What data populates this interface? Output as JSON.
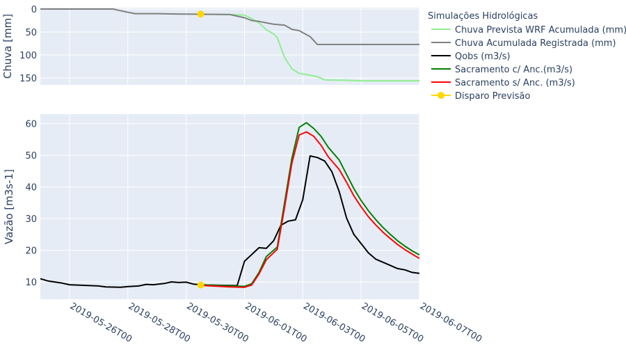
{
  "chart_data": [
    {
      "type": "line",
      "panel": "top",
      "ylabel": "Chuva [mm]",
      "y_reversed": true,
      "ylim": [
        165,
        -3
      ],
      "yticks": [
        0,
        50,
        100,
        150
      ],
      "x_range": [
        "2019-05-25T00",
        "2019-06-07T00"
      ],
      "series": [
        {
          "name": "Chuva Prevista WRF Acumulada (mm)",
          "color": "#90ee90",
          "points": [
            [
              "2019-05-30T12",
              11
            ],
            [
              "2019-05-31T12",
              12
            ],
            [
              "2019-06-01T00",
              13
            ],
            [
              "2019-06-01T06",
              21
            ],
            [
              "2019-06-01T12",
              30
            ],
            [
              "2019-06-01T18",
              45
            ],
            [
              "2019-06-02T00",
              54
            ],
            [
              "2019-06-02T03",
              62
            ],
            [
              "2019-06-02T09",
              105
            ],
            [
              "2019-06-02T15",
              130
            ],
            [
              "2019-06-02T21",
              140
            ],
            [
              "2019-06-03T06",
              144
            ],
            [
              "2019-06-03T12",
              147
            ],
            [
              "2019-06-03T18",
              154
            ],
            [
              "2019-06-04T12",
              155
            ],
            [
              "2019-06-05T00",
              156
            ],
            [
              "2019-06-07T00",
              156
            ]
          ]
        },
        {
          "name": "Chuva Acumulada Registrada (mm)",
          "color": "#808080",
          "points": [
            [
              "2019-05-25T00",
              0
            ],
            [
              "2019-05-27T12",
              0
            ],
            [
              "2019-05-28T00",
              7
            ],
            [
              "2019-05-28T06",
              10
            ],
            [
              "2019-05-29T00",
              10
            ],
            [
              "2019-05-30T00",
              11
            ],
            [
              "2019-05-31T12",
              12
            ],
            [
              "2019-06-01T00",
              19
            ],
            [
              "2019-06-01T06",
              25
            ],
            [
              "2019-06-01T12",
              27
            ],
            [
              "2019-06-02T00",
              33
            ],
            [
              "2019-06-02T09",
              35
            ],
            [
              "2019-06-02T15",
              44
            ],
            [
              "2019-06-02T21",
              47
            ],
            [
              "2019-06-03T06",
              60
            ],
            [
              "2019-06-03T12",
              77
            ],
            [
              "2019-06-04T12",
              77
            ],
            [
              "2019-06-07T00",
              77
            ]
          ]
        }
      ],
      "marker": {
        "name": "Disparo Previsão",
        "color": "#ffd700",
        "x": "2019-05-30T12",
        "y": 11
      }
    },
    {
      "type": "line",
      "panel": "bottom",
      "ylabel": "Vazão [m3s-1]",
      "ylim": [
        4.5,
        63
      ],
      "yticks": [
        10,
        20,
        30,
        40,
        50,
        60
      ],
      "xticks": [
        "2019-05-26T00",
        "2019-05-28T00",
        "2019-05-30T00",
        "2019-06-01T00",
        "2019-06-03T00",
        "2019-06-05T00",
        "2019-06-07T00"
      ],
      "x_range": [
        "2019-05-25T00",
        "2019-06-07T00"
      ],
      "series": [
        {
          "name": "Qobs (m3/s)",
          "color": "#000000",
          "points": [
            [
              "2019-05-25T00",
              11.0
            ],
            [
              "2019-05-25T06",
              10.3
            ],
            [
              "2019-05-25T18",
              9.6
            ],
            [
              "2019-05-26T00",
              9.1
            ],
            [
              "2019-05-26T12",
              8.9
            ],
            [
              "2019-05-27T00",
              8.7
            ],
            [
              "2019-05-27T06",
              8.4
            ],
            [
              "2019-05-27T18",
              8.3
            ],
            [
              "2019-05-28T00",
              8.5
            ],
            [
              "2019-05-28T09",
              8.7
            ],
            [
              "2019-05-28T15",
              9.2
            ],
            [
              "2019-05-28T21",
              9.1
            ],
            [
              "2019-05-29T06",
              9.5
            ],
            [
              "2019-05-29T12",
              10.0
            ],
            [
              "2019-05-29T18",
              9.8
            ],
            [
              "2019-05-30T00",
              9.9
            ],
            [
              "2019-05-30T06",
              9.3
            ],
            [
              "2019-05-30T12",
              9.1
            ],
            [
              "2019-05-30T18",
              9.0
            ],
            [
              "2019-05-31T06",
              8.9
            ],
            [
              "2019-05-31T18",
              8.8
            ],
            [
              "2019-06-01T00",
              16.5
            ],
            [
              "2019-06-01T12",
              20.8
            ],
            [
              "2019-06-01T18",
              20.6
            ],
            [
              "2019-06-02T00",
              23.0
            ],
            [
              "2019-06-02T06",
              27.9
            ],
            [
              "2019-06-02T12",
              29.2
            ],
            [
              "2019-06-02T18",
              29.6
            ],
            [
              "2019-06-03T00",
              36.0
            ],
            [
              "2019-06-03T06",
              49.8
            ],
            [
              "2019-06-03T12",
              49.3
            ],
            [
              "2019-06-03T18",
              48.2
            ],
            [
              "2019-06-04T00",
              44.8
            ],
            [
              "2019-06-04T06",
              38.5
            ],
            [
              "2019-06-04T12",
              30.2
            ],
            [
              "2019-06-04T18",
              25.0
            ],
            [
              "2019-06-05T00",
              22.1
            ],
            [
              "2019-06-05T06",
              19.2
            ],
            [
              "2019-06-05T12",
              17.2
            ],
            [
              "2019-06-05T18",
              16.2
            ],
            [
              "2019-06-06T00",
              15.2
            ],
            [
              "2019-06-06T06",
              14.2
            ],
            [
              "2019-06-06T12",
              13.8
            ],
            [
              "2019-06-06T18",
              13.0
            ],
            [
              "2019-06-07T00",
              12.7
            ]
          ]
        },
        {
          "name": "Sacramento c/ Anc.(m3/s)",
          "color": "#008000",
          "points": [
            [
              "2019-05-30T12",
              9.1
            ],
            [
              "2019-05-31T12",
              8.7
            ],
            [
              "2019-06-01T00",
              8.6
            ],
            [
              "2019-06-01T06",
              9.4
            ],
            [
              "2019-06-01T12",
              13.0
            ],
            [
              "2019-06-01T18",
              18.0
            ],
            [
              "2019-06-02T03",
              21.0
            ],
            [
              "2019-06-02T09",
              35.0
            ],
            [
              "2019-06-02T15",
              49.0
            ],
            [
              "2019-06-02T21",
              58.8
            ],
            [
              "2019-06-03T03",
              60.3
            ],
            [
              "2019-06-03T09",
              58.5
            ],
            [
              "2019-06-03T15",
              56.0
            ],
            [
              "2019-06-03T21",
              52.5
            ],
            [
              "2019-06-04T06",
              48.5
            ],
            [
              "2019-06-04T12",
              44.0
            ],
            [
              "2019-06-04T18",
              39.5
            ],
            [
              "2019-06-05T00",
              35.7
            ],
            [
              "2019-06-05T06",
              32.5
            ],
            [
              "2019-06-05T12",
              29.7
            ],
            [
              "2019-06-05T18",
              27.2
            ],
            [
              "2019-06-06T00",
              25.0
            ],
            [
              "2019-06-06T06",
              23.0
            ],
            [
              "2019-06-06T12",
              21.3
            ],
            [
              "2019-06-06T18",
              19.8
            ],
            [
              "2019-06-07T00",
              18.5
            ]
          ]
        },
        {
          "name": "Sacramento s/ Anc. (m3/s)",
          "color": "#ff0000",
          "points": [
            [
              "2019-05-30T12",
              8.9
            ],
            [
              "2019-05-31T12",
              8.4
            ],
            [
              "2019-06-01T00",
              8.3
            ],
            [
              "2019-06-01T06",
              9.0
            ],
            [
              "2019-06-01T12",
              12.5
            ],
            [
              "2019-06-01T18",
              17.0
            ],
            [
              "2019-06-02T03",
              20.3
            ],
            [
              "2019-06-02T09",
              33.5
            ],
            [
              "2019-06-02T15",
              47.5
            ],
            [
              "2019-06-02T21",
              56.4
            ],
            [
              "2019-06-03T03",
              57.4
            ],
            [
              "2019-06-03T09",
              56.0
            ],
            [
              "2019-06-03T15",
              53.2
            ],
            [
              "2019-06-03T21",
              49.5
            ],
            [
              "2019-06-04T06",
              45.5
            ],
            [
              "2019-06-04T12",
              41.5
            ],
            [
              "2019-06-04T18",
              37.2
            ],
            [
              "2019-06-05T00",
              33.7
            ],
            [
              "2019-06-05T06",
              30.6
            ],
            [
              "2019-06-05T12",
              28.0
            ],
            [
              "2019-06-05T18",
              25.7
            ],
            [
              "2019-06-06T00",
              23.7
            ],
            [
              "2019-06-06T06",
              21.8
            ],
            [
              "2019-06-06T12",
              20.2
            ],
            [
              "2019-06-06T18",
              18.8
            ],
            [
              "2019-06-07T00",
              17.4
            ]
          ]
        }
      ],
      "marker": {
        "name": "Disparo Previsão",
        "color": "#ffd700",
        "x": "2019-05-30T12",
        "y": 9.0
      }
    }
  ],
  "legend": {
    "title": "Simulações Hidrológicas",
    "placement": "right",
    "items": [
      {
        "label": "Chuva Prevista WRF Acumulada (mm)",
        "color": "#90ee90",
        "kind": "line"
      },
      {
        "label": "Chuva Acumulada Registrada (mm)",
        "color": "#808080",
        "kind": "line"
      },
      {
        "label": "Qobs (m3/s)",
        "color": "#000000",
        "kind": "line"
      },
      {
        "label": "Sacramento c/ Anc.(m3/s)",
        "color": "#008000",
        "kind": "line"
      },
      {
        "label": "Sacramento s/ Anc. (m3/s)",
        "color": "#ff0000",
        "kind": "line"
      },
      {
        "label": "Disparo Previsão",
        "color": "#ffd700",
        "kind": "line-marker"
      }
    ]
  },
  "style": {
    "plot_bg": "#e5ecf6",
    "grid_color": "#ffffff",
    "text_color": "#2a3f5f"
  }
}
